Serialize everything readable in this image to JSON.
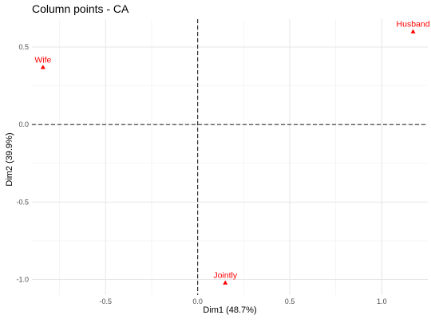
{
  "chart_data": {
    "type": "scatter",
    "title": "Column points - CA",
    "xlabel": "Dim1 (48.7%)",
    "ylabel": "Dim2 (39.9%)",
    "xlim": [
      -0.9,
      1.25
    ],
    "ylim": [
      -1.1,
      0.68
    ],
    "x_ticks": [
      -0.5,
      0.0,
      0.5,
      1.0
    ],
    "x_tick_labels": [
      "-0.5",
      "0.0",
      "0.5",
      "1.0"
    ],
    "y_ticks": [
      0.5,
      0.0,
      -0.5,
      -1.0
    ],
    "y_tick_labels": [
      "0.5",
      "0.0",
      "-0.5",
      "-1.0"
    ],
    "grid": true,
    "reference_lines": [
      {
        "axis": "x",
        "value": 0,
        "style": "dashed"
      },
      {
        "axis": "y",
        "value": 0,
        "style": "dashed"
      }
    ],
    "point_color": "#ff0000",
    "points": [
      {
        "label": "Wife",
        "x": -0.84,
        "y": 0.37
      },
      {
        "label": "Husband",
        "x": 1.17,
        "y": 0.6
      },
      {
        "label": "Jointly",
        "x": 0.15,
        "y": -1.02
      }
    ]
  }
}
